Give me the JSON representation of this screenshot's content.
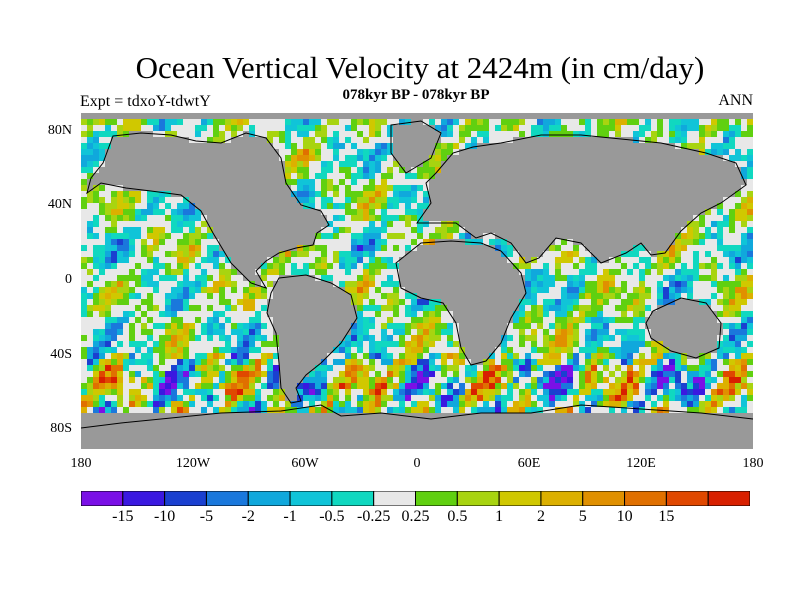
{
  "title": "Ocean Vertical Velocity at 2424m (in cm/day)",
  "subtitle": "078kyr BP - 078kyr BP",
  "experiment": "Expt = tdxoY-tdwtY",
  "season": "ANN",
  "map": {
    "land_color": "#999999",
    "lat_labels": [
      {
        "text": "80N",
        "lat": 80
      },
      {
        "text": "40N",
        "lat": 40
      },
      {
        "text": "0",
        "lat": 0
      },
      {
        "text": "40S",
        "lat": -40
      },
      {
        "text": "80S",
        "lat": -80
      }
    ],
    "lon_labels": [
      {
        "text": "180",
        "lon": -180
      },
      {
        "text": "120W",
        "lon": -120
      },
      {
        "text": "60W",
        "lon": -60
      },
      {
        "text": "0",
        "lon": 0
      },
      {
        "text": "60E",
        "lon": 60
      },
      {
        "text": "120E",
        "lon": 120
      },
      {
        "text": "180",
        "lon": 180
      }
    ]
  },
  "colorbar": {
    "colors": [
      "#7a10e6",
      "#3a18e0",
      "#1a40d0",
      "#1a78dc",
      "#10a8dc",
      "#10c4d8",
      "#10d8c0",
      "#e8e8e8",
      "#60d010",
      "#a8d410",
      "#d0c800",
      "#dcb000",
      "#e09000",
      "#e07000",
      "#e04800",
      "#d82000"
    ],
    "labels": [
      "-15",
      "-10",
      "-5",
      "-2",
      "-1",
      "-0.5",
      "-0.25",
      "0.25",
      "0.5",
      "1",
      "2",
      "5",
      "10",
      "15"
    ]
  }
}
